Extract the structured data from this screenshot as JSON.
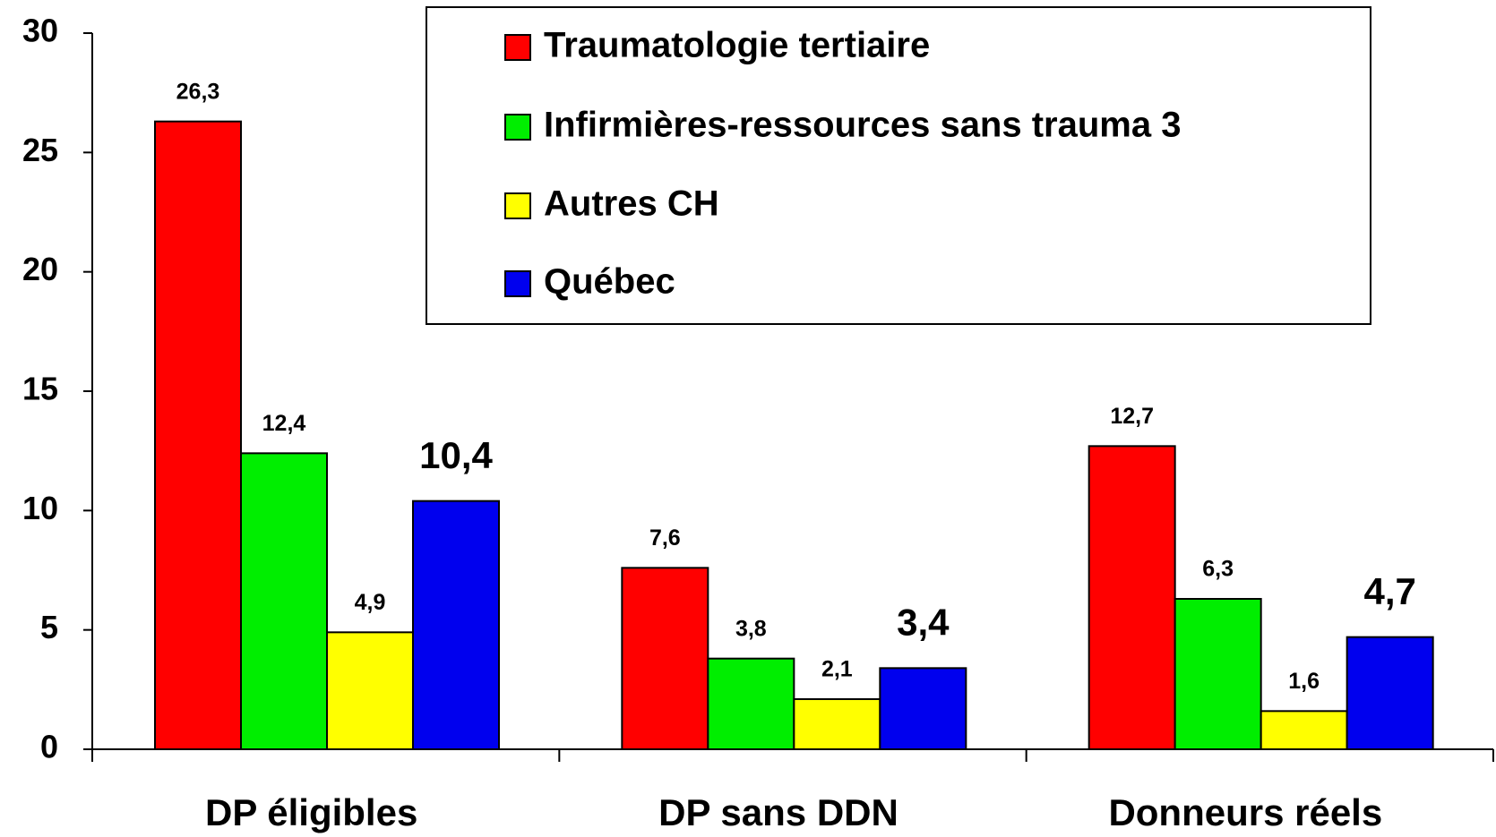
{
  "chart_data": {
    "type": "bar",
    "categories": [
      "DP éligibles",
      "DP sans DDN",
      "Donneurs réels"
    ],
    "series": [
      {
        "name": "Traumatologie tertiaire",
        "color": "#ff0000",
        "values": [
          26.3,
          7.6,
          12.7
        ],
        "value_labels": [
          "26,3",
          "7,6",
          "12,7"
        ]
      },
      {
        "name": "Infirmières-ressources sans trauma 3",
        "color": "#00ee00",
        "values": [
          12.4,
          3.8,
          6.3
        ],
        "value_labels": [
          "12,4",
          "3,8",
          "6,3"
        ]
      },
      {
        "name": "Autres CH",
        "color": "#ffff00",
        "values": [
          4.9,
          2.1,
          1.6
        ],
        "value_labels": [
          "4,9",
          "2,1",
          "1,6"
        ]
      },
      {
        "name": "Québec",
        "color": "#0000ee",
        "values": [
          10.4,
          3.4,
          4.7
        ],
        "value_labels": [
          "10,4",
          "3,4",
          "4,7"
        ]
      }
    ],
    "ylim": [
      0,
      30
    ],
    "yticks": [
      0,
      5,
      10,
      15,
      20,
      25,
      30
    ],
    "grid": false,
    "legend": "top-right"
  }
}
